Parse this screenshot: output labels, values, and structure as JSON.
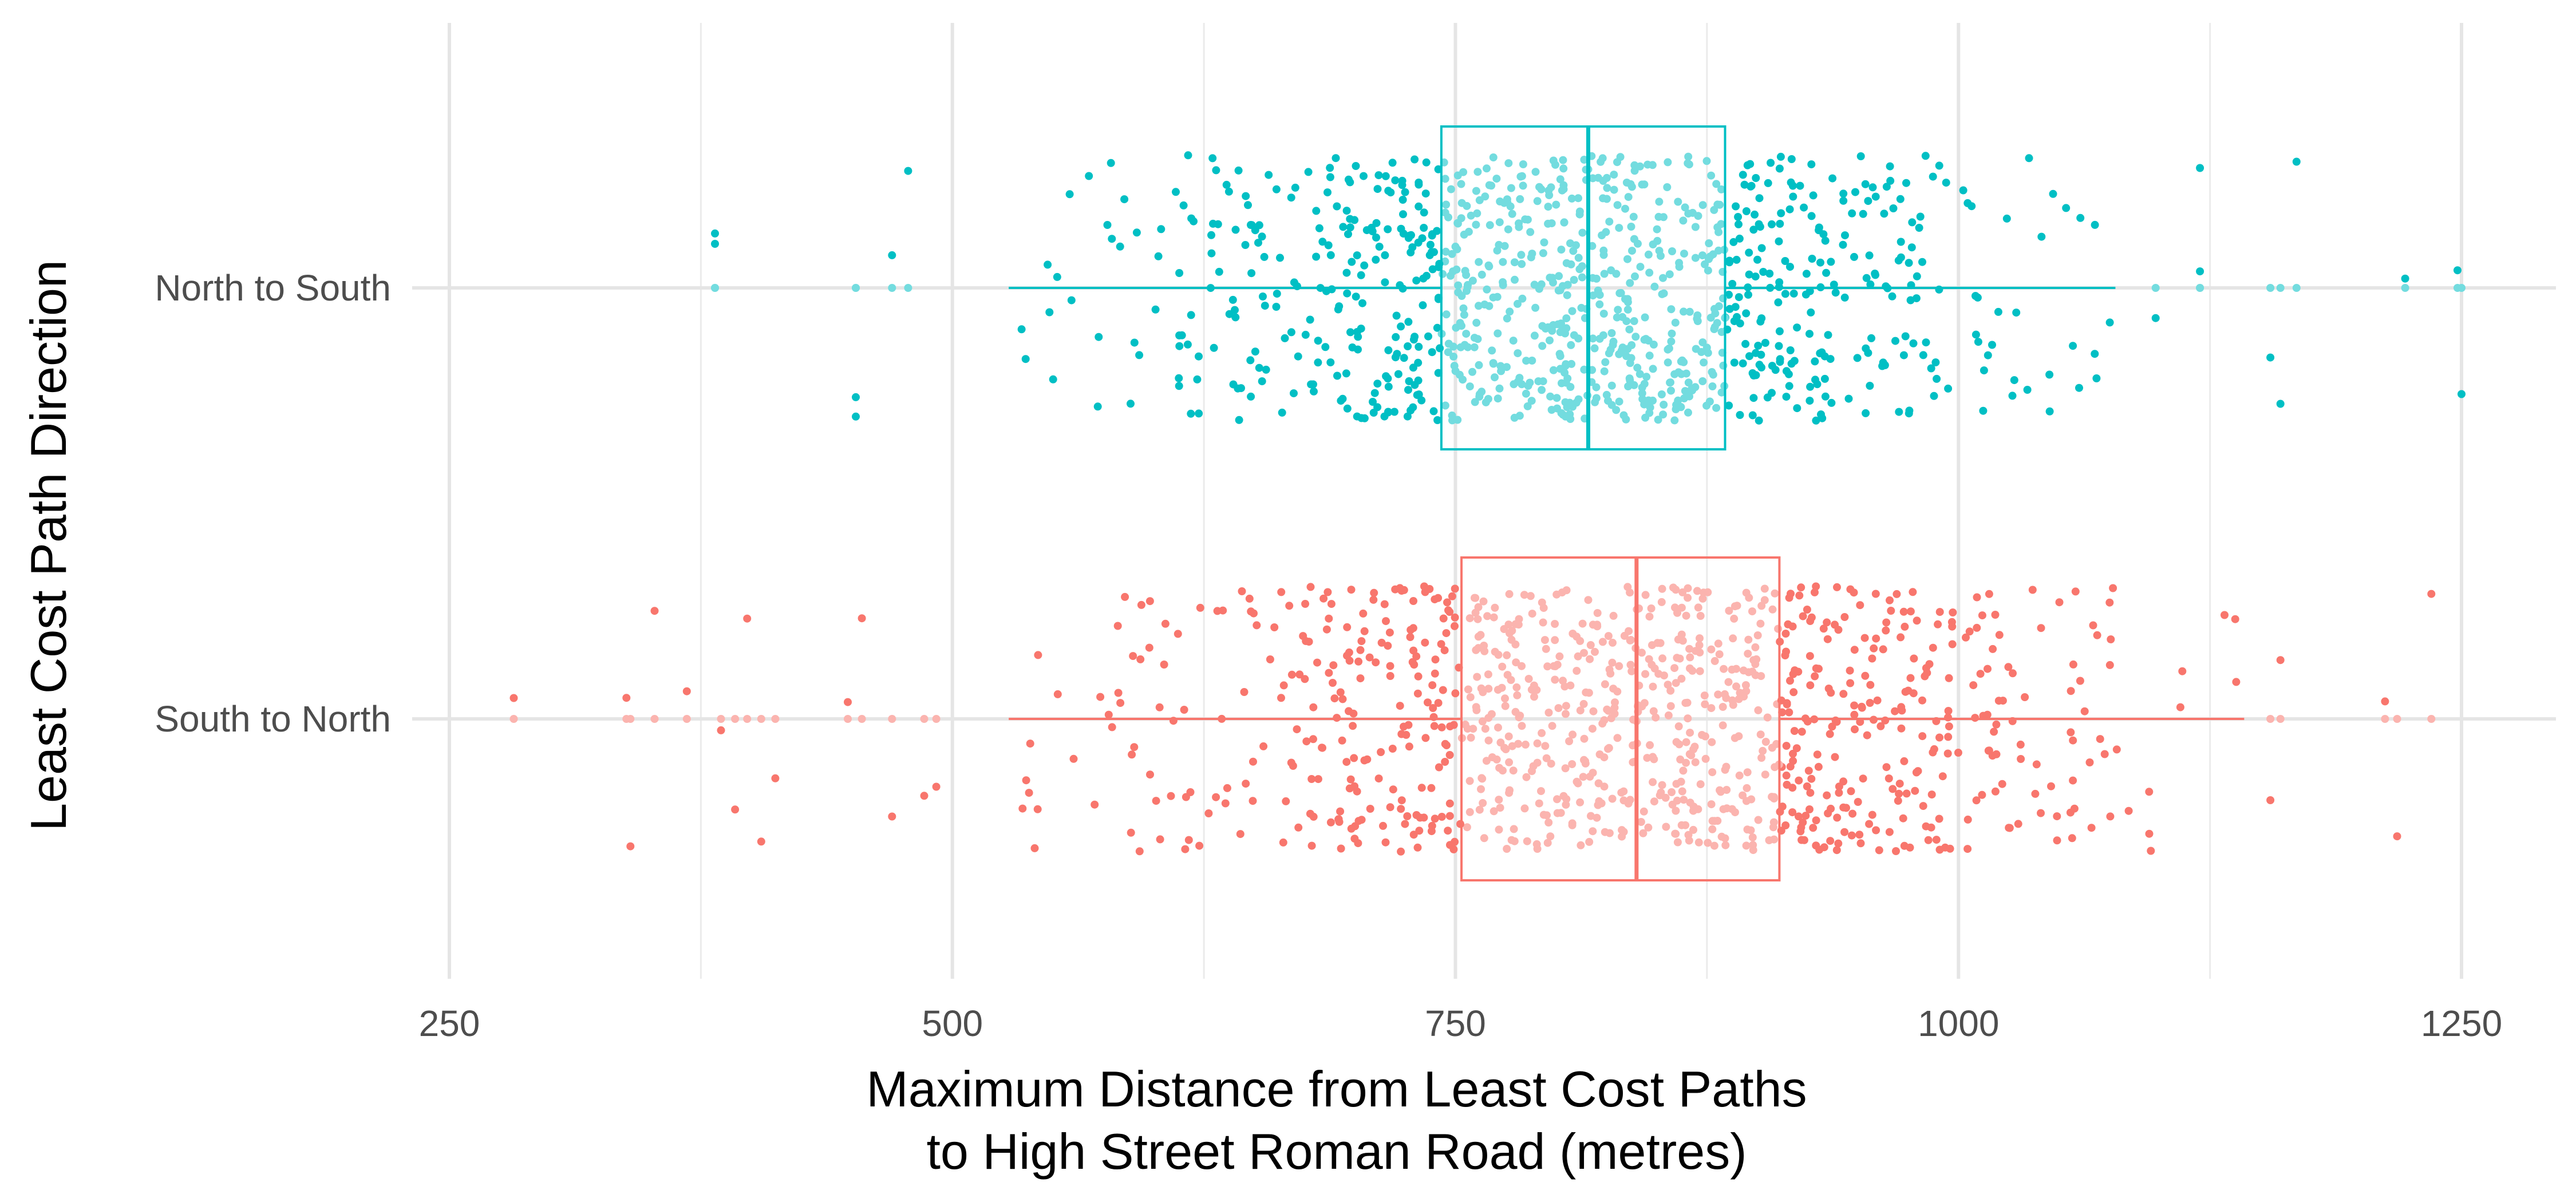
{
  "chart_data": {
    "type": "boxplot",
    "orientation": "horizontal",
    "xlabel": [
      "Maximum Distance from Least Cost Paths",
      "to High Street Roman Road (metres)"
    ],
    "ylabel": "Least Cost Path Direction",
    "xlim": [
      230,
      1270
    ],
    "x_ticks": [
      250,
      500,
      750,
      1000,
      1250
    ],
    "grid": true,
    "legend": "none",
    "categories": [
      "North to South",
      "South to North"
    ],
    "series": [
      {
        "name": "North to South",
        "color": "#00BFC4",
        "box": {
          "whisker_low": 528,
          "q1": 743,
          "median": 816,
          "q3": 884,
          "whisker_high": 1078
        },
        "outliers": [
          382,
          382,
          452,
          452,
          470,
          478,
          1098,
          1120,
          1120,
          1155,
          1160,
          1168,
          1222,
          1248,
          1250
        ],
        "n_points": 1000
      },
      {
        "name": "South to North",
        "color": "#F8766D",
        "box": {
          "whisker_low": 528,
          "q1": 753,
          "median": 840,
          "q3": 911,
          "whisker_high": 1142
        },
        "outliers": [
          282,
          338,
          340,
          352,
          368,
          385,
          392,
          398,
          405,
          412,
          448,
          455,
          470,
          486,
          492,
          1155,
          1160,
          1212,
          1218,
          1235
        ],
        "n_points": 1000
      }
    ]
  }
}
